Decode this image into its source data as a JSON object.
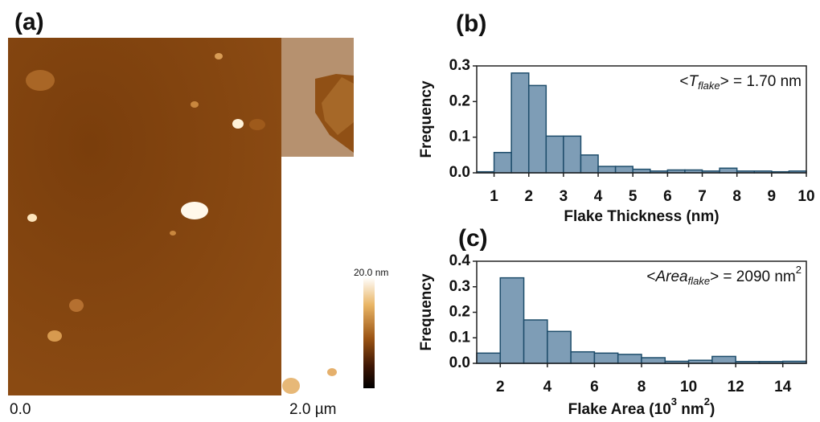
{
  "image_panel": {
    "label": "(a)",
    "scale_start": "0.0",
    "scale_end": "2.0 µm",
    "colorbar_max": "20.0 nm"
  },
  "chart_data": [
    {
      "type": "histogram",
      "panel_label": "(b)",
      "bins": [
        0.5,
        1,
        1.5,
        2,
        2.5,
        3,
        3.5,
        4,
        4.5,
        5,
        5.5,
        6,
        6.5,
        7,
        7.5,
        8,
        8.5,
        9,
        9.5,
        10
      ],
      "counts": [
        0.003,
        0.057,
        0.28,
        0.245,
        0.103,
        0.103,
        0.05,
        0.018,
        0.018,
        0.01,
        0.005,
        0.008,
        0.008,
        0.005,
        0.013,
        0.005,
        0.005,
        0.003,
        0.005
      ],
      "xlim": [
        0.5,
        10
      ],
      "xticks": [
        1,
        2,
        3,
        4,
        5,
        6,
        7,
        8,
        9,
        10
      ],
      "ylim": [
        0,
        0.3
      ],
      "yticks": [
        {
          "value": 0,
          "label": "0.0"
        },
        0.1,
        0.2,
        0.3
      ],
      "xlabel": [
        "Flake Thickness (nm)"
      ],
      "ylabel": "Frequency",
      "annotation": {
        "prefix": "<",
        "symbol": "T",
        "subscript": "flake",
        "suffix": "> = 1.70 nm"
      },
      "color": "#7e9db6",
      "edge_color": "#1e4d6b"
    },
    {
      "type": "histogram",
      "panel_label": "(c)",
      "bins": [
        1,
        2,
        3,
        4,
        5,
        6,
        7,
        8,
        9,
        10,
        11,
        12,
        13,
        14,
        15
      ],
      "counts": [
        0.04,
        0.335,
        0.17,
        0.125,
        0.045,
        0.04,
        0.035,
        0.022,
        0.008,
        0.012,
        0.027,
        0.007,
        0.007,
        0.008
      ],
      "xlim": [
        1,
        15
      ],
      "xticks": [
        2,
        4,
        6,
        8,
        10,
        12,
        14
      ],
      "ylim": [
        0,
        0.4
      ],
      "yticks": [
        {
          "value": 0,
          "label": "0.0"
        },
        0.1,
        0.2,
        0.3,
        0.4
      ],
      "xlabel": [
        "Flake Area (10",
        "3",
        " nm",
        "2",
        ")"
      ],
      "ylabel": "Frequency",
      "annotation": {
        "prefix": "<",
        "symbol": "Area",
        "subscript": "flake",
        "suffix": "> = 2090 nm",
        "superscript": "2"
      },
      "color": "#7e9db6",
      "edge_color": "#1e4d6b"
    }
  ]
}
